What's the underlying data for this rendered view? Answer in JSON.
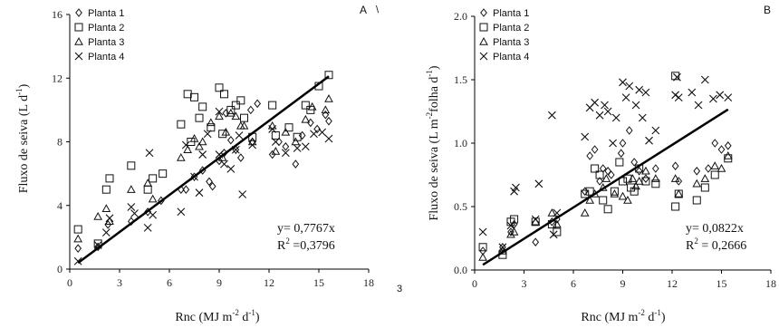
{
  "chart_data": [
    {
      "panel_label": "A",
      "type": "scatter",
      "xlabel_main": "Rnc (MJ m",
      "xlabel_sup1": "-2",
      "xlabel_mid": " d",
      "xlabel_sup2": "-1",
      "xlabel_end": ")",
      "ylabel_main": "Fluxo de seiva (L d",
      "ylabel_sup1": "-1",
      "ylabel_end": ")",
      "xlim": [
        0,
        18
      ],
      "ylim": [
        0,
        16
      ],
      "xticks": [
        0,
        3,
        6,
        9,
        12,
        15,
        18
      ],
      "yticks": [
        0,
        4,
        8,
        12,
        16
      ],
      "yticklabels": [
        "0",
        "4",
        "8",
        "12",
        "16"
      ],
      "equation": "y= 0,7767x",
      "r2_label": "R",
      "r2_sup": "2",
      "r2_value": " =0,3796",
      "fit": {
        "slope": 0.7767,
        "x_range": [
          0.5,
          15.6
        ]
      },
      "legend": [
        "Planta 1",
        "Planta 2",
        "Planta 3",
        "Planta 4"
      ],
      "series": [
        {
          "name": "Planta 1",
          "marker": "diamond",
          "points": [
            [
              0.5,
              1.3
            ],
            [
              1.7,
              1.4
            ],
            [
              2.3,
              2.8
            ],
            [
              3.7,
              3.0
            ],
            [
              4.7,
              3.6
            ],
            [
              5.5,
              4.3
            ],
            [
              7.0,
              5.0
            ],
            [
              7.5,
              5.8
            ],
            [
              8.0,
              6.2
            ],
            [
              8.4,
              5.5
            ],
            [
              8.6,
              5.2
            ],
            [
              9.0,
              6.8
            ],
            [
              9.3,
              7.3
            ],
            [
              9.7,
              8.1
            ],
            [
              10.0,
              7.5
            ],
            [
              10.3,
              7.0
            ],
            [
              10.9,
              10.0
            ],
            [
              11.3,
              10.4
            ],
            [
              12.2,
              7.2
            ],
            [
              12.6,
              8.0
            ],
            [
              13.0,
              7.7
            ],
            [
              13.6,
              6.6
            ],
            [
              14.0,
              8.4
            ],
            [
              14.5,
              9.2
            ],
            [
              14.9,
              8.8
            ],
            [
              15.4,
              9.7
            ],
            [
              15.6,
              9.3
            ],
            [
              9.4,
              9.8
            ],
            [
              6.7,
              5.0
            ],
            [
              11.0,
              8.0
            ]
          ]
        },
        {
          "name": "Planta 2",
          "marker": "square",
          "points": [
            [
              0.5,
              2.5
            ],
            [
              1.7,
              1.6
            ],
            [
              2.2,
              5.0
            ],
            [
              2.4,
              5.7
            ],
            [
              3.7,
              6.5
            ],
            [
              4.7,
              5.0
            ],
            [
              5.0,
              5.7
            ],
            [
              5.6,
              6.0
            ],
            [
              6.7,
              9.1
            ],
            [
              7.1,
              11.0
            ],
            [
              7.5,
              10.8
            ],
            [
              7.8,
              9.5
            ],
            [
              8.0,
              10.2
            ],
            [
              8.5,
              8.9
            ],
            [
              9.0,
              11.4
            ],
            [
              9.3,
              11.0
            ],
            [
              9.7,
              10.0
            ],
            [
              10.0,
              10.3
            ],
            [
              10.3,
              10.6
            ],
            [
              10.5,
              9.5
            ],
            [
              11.0,
              8.3
            ],
            [
              12.2,
              10.3
            ],
            [
              12.4,
              8.4
            ],
            [
              13.2,
              8.9
            ],
            [
              13.7,
              8.3
            ],
            [
              14.2,
              10.3
            ],
            [
              14.5,
              10.0
            ],
            [
              15.0,
              11.5
            ],
            [
              15.6,
              12.2
            ],
            [
              9.2,
              8.5
            ],
            [
              7.3,
              8.0
            ]
          ]
        },
        {
          "name": "Planta 3",
          "marker": "triangle",
          "points": [
            [
              0.5,
              1.9
            ],
            [
              1.7,
              3.3
            ],
            [
              2.2,
              3.8
            ],
            [
              2.4,
              3.0
            ],
            [
              3.7,
              5.0
            ],
            [
              4.7,
              5.4
            ],
            [
              5.0,
              4.4
            ],
            [
              6.7,
              7.0
            ],
            [
              7.1,
              7.5
            ],
            [
              7.5,
              8.2
            ],
            [
              8.0,
              8.0
            ],
            [
              8.5,
              9.2
            ],
            [
              9.0,
              9.6
            ],
            [
              9.4,
              8.6
            ],
            [
              9.7,
              9.8
            ],
            [
              10.0,
              9.6
            ],
            [
              10.3,
              9.0
            ],
            [
              10.5,
              9.0
            ],
            [
              11.0,
              8.0
            ],
            [
              12.2,
              9.0
            ],
            [
              12.4,
              7.4
            ],
            [
              13.0,
              8.6
            ],
            [
              13.6,
              8.0
            ],
            [
              14.2,
              9.4
            ],
            [
              14.6,
              10.2
            ],
            [
              15.4,
              10.0
            ],
            [
              15.6,
              10.7
            ],
            [
              9.2,
              7.0
            ],
            [
              7.8,
              7.7
            ]
          ]
        },
        {
          "name": "Planta 4",
          "marker": "x",
          "points": [
            [
              0.5,
              0.5
            ],
            [
              1.7,
              1.5
            ],
            [
              2.2,
              2.3
            ],
            [
              2.4,
              3.2
            ],
            [
              3.7,
              3.9
            ],
            [
              3.9,
              3.5
            ],
            [
              4.7,
              2.6
            ],
            [
              4.8,
              7.3
            ],
            [
              5.0,
              3.4
            ],
            [
              6.7,
              3.6
            ],
            [
              7.0,
              7.8
            ],
            [
              7.5,
              5.8
            ],
            [
              7.8,
              4.8
            ],
            [
              8.0,
              7.2
            ],
            [
              8.3,
              8.5
            ],
            [
              9.0,
              7.2
            ],
            [
              9.3,
              6.6
            ],
            [
              9.7,
              6.3
            ],
            [
              10.0,
              7.5
            ],
            [
              10.4,
              4.7
            ],
            [
              11.0,
              7.8
            ],
            [
              12.2,
              8.8
            ],
            [
              12.4,
              8.0
            ],
            [
              13.0,
              7.3
            ],
            [
              13.7,
              7.6
            ],
            [
              14.2,
              7.7
            ],
            [
              14.7,
              8.5
            ],
            [
              15.2,
              8.6
            ],
            [
              15.6,
              8.2
            ],
            [
              9.0,
              9.9
            ],
            [
              10.2,
              8.4
            ]
          ]
        }
      ]
    },
    {
      "panel_label": "B",
      "type": "scatter",
      "xlabel_main": "Rnc (MJ m",
      "xlabel_sup1": "-2",
      "xlabel_mid": " d",
      "xlabel_sup2": "-1",
      "xlabel_end": ")",
      "ylabel_main": "Fluxo de seiva (L m",
      "ylabel_sup1": "-2",
      "ylabel_mid": "folha d",
      "ylabel_sup2": "-1",
      "ylabel_end": ")",
      "xlim": [
        0,
        18
      ],
      "ylim": [
        0,
        2
      ],
      "xticks": [
        0,
        3,
        6,
        9,
        12,
        15,
        18
      ],
      "yticks": [
        0,
        0.5,
        1,
        1.5,
        2
      ],
      "yticklabels": [
        "0.0",
        "0.5",
        "1.0",
        "1.5",
        "2.0"
      ],
      "equation": "y= 0,0822x",
      "r2_label": "R",
      "r2_sup": "2",
      "r2_value": " = 0,2666",
      "fit": {
        "slope": 0.0822,
        "x_range": [
          0.5,
          15.4
        ]
      },
      "legend": [
        "Planta 1",
        "Planta 2",
        "Planta 3",
        "Planta 4"
      ],
      "series": [
        {
          "name": "Planta 1",
          "marker": "diamond",
          "points": [
            [
              0.5,
              0.15
            ],
            [
              1.7,
              0.18
            ],
            [
              2.2,
              0.3
            ],
            [
              2.4,
              0.36
            ],
            [
              3.7,
              0.22
            ],
            [
              4.7,
              0.38
            ],
            [
              5.0,
              0.4
            ],
            [
              6.7,
              0.62
            ],
            [
              7.0,
              0.9
            ],
            [
              7.3,
              0.95
            ],
            [
              7.8,
              0.8
            ],
            [
              8.1,
              0.78
            ],
            [
              8.3,
              0.75
            ],
            [
              8.9,
              0.92
            ],
            [
              9.0,
              1.0
            ],
            [
              9.4,
              1.1
            ],
            [
              9.7,
              0.85
            ],
            [
              10.0,
              0.78
            ],
            [
              10.4,
              0.72
            ],
            [
              12.2,
              0.82
            ],
            [
              12.4,
              0.7
            ],
            [
              13.5,
              0.78
            ],
            [
              14.2,
              0.8
            ],
            [
              14.6,
              1.0
            ],
            [
              15.0,
              0.95
            ],
            [
              15.4,
              0.98
            ],
            [
              11.0,
              0.8
            ],
            [
              7.6,
              0.7
            ]
          ]
        },
        {
          "name": "Planta 2",
          "marker": "square",
          "points": [
            [
              0.5,
              0.18
            ],
            [
              1.7,
              0.12
            ],
            [
              2.2,
              0.38
            ],
            [
              2.4,
              0.4
            ],
            [
              3.7,
              0.38
            ],
            [
              4.7,
              0.36
            ],
            [
              5.0,
              0.3
            ],
            [
              6.7,
              0.6
            ],
            [
              7.0,
              0.62
            ],
            [
              7.3,
              0.8
            ],
            [
              7.6,
              0.75
            ],
            [
              8.1,
              0.48
            ],
            [
              8.5,
              0.62
            ],
            [
              9.0,
              0.7
            ],
            [
              9.3,
              0.72
            ],
            [
              9.7,
              0.62
            ],
            [
              10.0,
              0.8
            ],
            [
              10.4,
              0.7
            ],
            [
              11.0,
              0.68
            ],
            [
              12.2,
              0.5
            ],
            [
              12.4,
              0.6
            ],
            [
              12.2,
              1.53
            ],
            [
              13.5,
              0.55
            ],
            [
              14.0,
              0.65
            ],
            [
              14.6,
              0.75
            ],
            [
              15.4,
              0.88
            ],
            [
              8.8,
              0.85
            ],
            [
              9.5,
              0.65
            ],
            [
              7.8,
              0.55
            ]
          ]
        },
        {
          "name": "Planta 3",
          "marker": "triangle",
          "points": [
            [
              0.5,
              0.1
            ],
            [
              1.7,
              0.15
            ],
            [
              2.2,
              0.28
            ],
            [
              2.4,
              0.3
            ],
            [
              3.7,
              0.38
            ],
            [
              4.7,
              0.45
            ],
            [
              5.0,
              0.36
            ],
            [
              6.7,
              0.45
            ],
            [
              7.0,
              0.55
            ],
            [
              7.3,
              0.6
            ],
            [
              7.8,
              0.65
            ],
            [
              8.0,
              0.72
            ],
            [
              8.5,
              0.6
            ],
            [
              9.0,
              0.58
            ],
            [
              9.3,
              0.55
            ],
            [
              9.6,
              0.72
            ],
            [
              10.0,
              0.7
            ],
            [
              10.4,
              0.78
            ],
            [
              11.0,
              0.72
            ],
            [
              12.2,
              0.72
            ],
            [
              12.4,
              0.6
            ],
            [
              13.5,
              0.68
            ],
            [
              14.0,
              0.72
            ],
            [
              14.6,
              0.82
            ],
            [
              15.0,
              0.8
            ],
            [
              15.4,
              0.9
            ],
            [
              9.8,
              0.66
            ]
          ]
        },
        {
          "name": "Planta 4",
          "marker": "x",
          "points": [
            [
              0.5,
              0.3
            ],
            [
              1.7,
              0.18
            ],
            [
              2.2,
              0.35
            ],
            [
              2.4,
              0.62
            ],
            [
              2.5,
              0.65
            ],
            [
              3.7,
              0.4
            ],
            [
              3.9,
              0.68
            ],
            [
              4.7,
              1.22
            ],
            [
              4.8,
              0.28
            ],
            [
              5.0,
              0.45
            ],
            [
              6.7,
              1.05
            ],
            [
              7.0,
              1.28
            ],
            [
              7.3,
              1.32
            ],
            [
              7.6,
              1.22
            ],
            [
              7.9,
              1.3
            ],
            [
              8.1,
              1.25
            ],
            [
              8.4,
              1.0
            ],
            [
              8.6,
              1.2
            ],
            [
              9.0,
              1.48
            ],
            [
              9.2,
              1.36
            ],
            [
              9.4,
              1.45
            ],
            [
              9.8,
              1.3
            ],
            [
              10.0,
              1.42
            ],
            [
              10.4,
              1.4
            ],
            [
              10.6,
              1.02
            ],
            [
              11.0,
              1.1
            ],
            [
              12.2,
              1.38
            ],
            [
              12.4,
              1.36
            ],
            [
              12.3,
              1.52
            ],
            [
              13.2,
              1.4
            ],
            [
              13.6,
              1.3
            ],
            [
              14.0,
              1.5
            ],
            [
              14.5,
              1.35
            ],
            [
              14.9,
              1.38
            ],
            [
              15.4,
              1.36
            ],
            [
              10.2,
              1.2
            ]
          ]
        }
      ]
    }
  ],
  "stray_marks": [
    "\\",
    "3"
  ]
}
